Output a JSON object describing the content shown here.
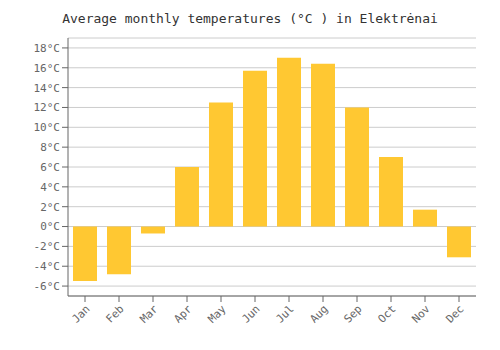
{
  "chart_data": {
    "type": "bar",
    "title": "Average monthly temperatures (°C ) in Elektrėnai",
    "categories": [
      "Jan",
      "Feb",
      "Mar",
      "Apr",
      "May",
      "Jun",
      "Jul",
      "Aug",
      "Sep",
      "Oct",
      "Nov",
      "Dec"
    ],
    "values": [
      -5.5,
      -4.8,
      -0.7,
      6.0,
      12.5,
      15.7,
      17.0,
      16.4,
      12.0,
      7.0,
      1.7,
      -3.1
    ],
    "color": "#FFC832",
    "ylim": [
      -7,
      19
    ],
    "yticks": [
      {
        "value": -6,
        "label": "-6°C"
      },
      {
        "value": -4,
        "label": "-4°C"
      },
      {
        "value": -2,
        "label": "-2°C"
      },
      {
        "value": 0,
        "label": "0°C"
      },
      {
        "value": 2,
        "label": "2°C"
      },
      {
        "value": 4,
        "label": "4°C"
      },
      {
        "value": 6,
        "label": "6°C"
      },
      {
        "value": 8,
        "label": "8°C"
      },
      {
        "value": 10,
        "label": "10°C"
      },
      {
        "value": 12,
        "label": "12°C"
      },
      {
        "value": 14,
        "label": "14°C"
      },
      {
        "value": 16,
        "label": "16°C"
      },
      {
        "value": 18,
        "label": "18°C"
      }
    ],
    "grid": true
  }
}
